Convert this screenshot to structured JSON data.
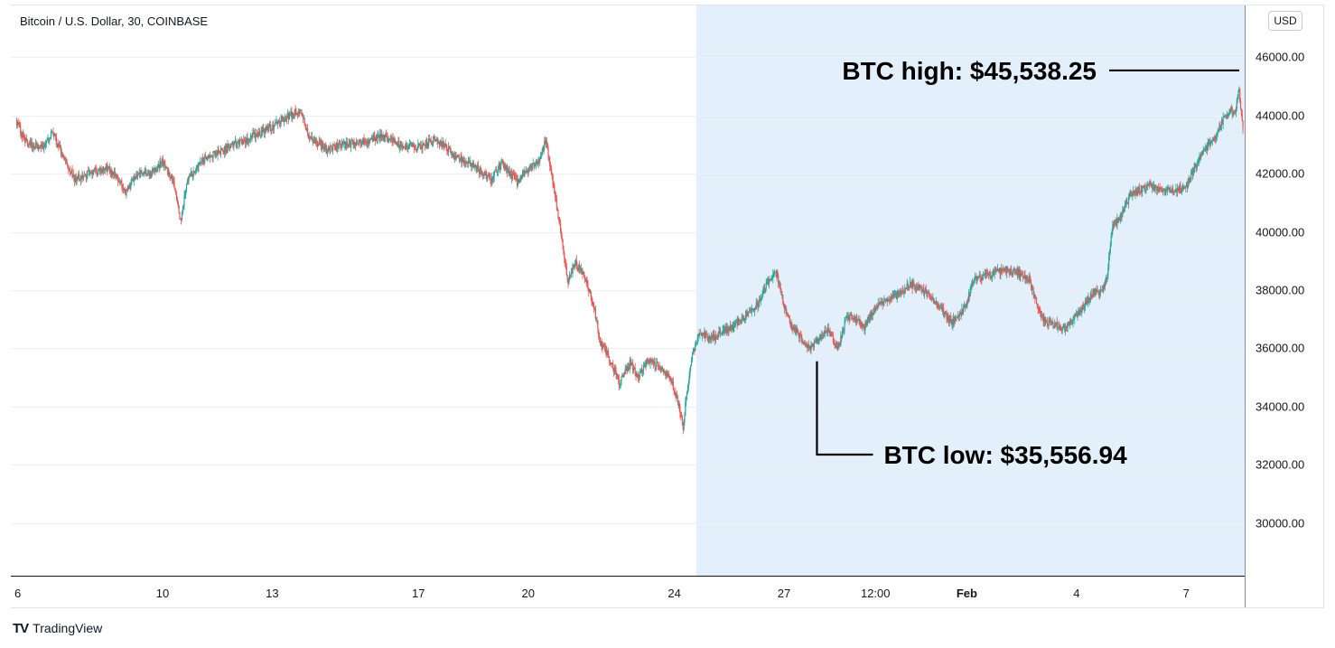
{
  "header": {
    "symbol_title": "Bitcoin / U.S. Dollar, 30, COINBASE",
    "currency": "USD"
  },
  "branding": {
    "logo_glyph": "TV",
    "name": "TradingView"
  },
  "colors": {
    "up": "#26a69a",
    "down": "#ef5350",
    "highlight": "#e3effb",
    "grid": "#eef0f3",
    "axis": "#8a8f99"
  },
  "chart_data": {
    "type": "candlestick",
    "title": "Bitcoin / U.S. Dollar, 30, COINBASE",
    "currency": "USD",
    "ylim": [
      28200,
      47800
    ],
    "y_ticks": [
      "46000.00",
      "44000.00",
      "42000.00",
      "40000.00",
      "38000.00",
      "36000.00",
      "34000.00",
      "32000.00",
      "30000.00"
    ],
    "y_tick_values": [
      46000,
      44000,
      42000,
      40000,
      38000,
      36000,
      34000,
      32000,
      30000
    ],
    "x_ticks": [
      {
        "label": "6",
        "day": 0,
        "bold": false
      },
      {
        "label": "10",
        "day": 4,
        "bold": false
      },
      {
        "label": "13",
        "day": 7,
        "bold": false
      },
      {
        "label": "17",
        "day": 11,
        "bold": false
      },
      {
        "label": "20",
        "day": 14,
        "bold": false
      },
      {
        "label": "24",
        "day": 18,
        "bold": false
      },
      {
        "label": "27",
        "day": 21,
        "bold": false
      },
      {
        "label": "12:00",
        "day": 23.5,
        "bold": false
      },
      {
        "label": "Feb",
        "day": 26,
        "bold": true
      },
      {
        "label": "4",
        "day": 29,
        "bold": false
      },
      {
        "label": "7",
        "day": 32,
        "bold": false
      }
    ],
    "highlight_day_range": [
      18.6,
      33.6
    ],
    "day_range": [
      -0.15,
      33.6
    ],
    "price_path": [
      [
        0.0,
        43800
      ],
      [
        0.3,
        43000
      ],
      [
        0.7,
        42900
      ],
      [
        1.0,
        43400
      ],
      [
        1.3,
        42600
      ],
      [
        1.6,
        41800
      ],
      [
        2.0,
        42000
      ],
      [
        2.5,
        42200
      ],
      [
        2.8,
        41800
      ],
      [
        3.0,
        41300
      ],
      [
        3.3,
        42000
      ],
      [
        3.7,
        42000
      ],
      [
        4.0,
        42400
      ],
      [
        4.3,
        41800
      ],
      [
        4.5,
        40400
      ],
      [
        4.7,
        41800
      ],
      [
        5.0,
        42400
      ],
      [
        5.5,
        42700
      ],
      [
        6.0,
        43000
      ],
      [
        6.5,
        43300
      ],
      [
        7.0,
        43600
      ],
      [
        7.5,
        44000
      ],
      [
        7.8,
        44200
      ],
      [
        8.0,
        43300
      ],
      [
        8.5,
        42800
      ],
      [
        9.0,
        43000
      ],
      [
        9.5,
        43100
      ],
      [
        10.0,
        43300
      ],
      [
        10.5,
        43000
      ],
      [
        11.0,
        42900
      ],
      [
        11.5,
        43200
      ],
      [
        12.0,
        42600
      ],
      [
        12.5,
        42300
      ],
      [
        13.0,
        41800
      ],
      [
        13.3,
        42400
      ],
      [
        13.7,
        41700
      ],
      [
        14.0,
        42100
      ],
      [
        14.3,
        42400
      ],
      [
        14.5,
        43200
      ],
      [
        14.7,
        41600
      ],
      [
        14.9,
        40000
      ],
      [
        15.1,
        38300
      ],
      [
        15.3,
        39000
      ],
      [
        15.6,
        38300
      ],
      [
        15.8,
        37500
      ],
      [
        16.0,
        36100
      ],
      [
        16.2,
        35800
      ],
      [
        16.5,
        34800
      ],
      [
        16.8,
        35500
      ],
      [
        17.0,
        35000
      ],
      [
        17.3,
        35600
      ],
      [
        17.6,
        35400
      ],
      [
        17.9,
        35000
      ],
      [
        18.1,
        34200
      ],
      [
        18.25,
        33300
      ],
      [
        18.35,
        34500
      ],
      [
        18.5,
        35700
      ],
      [
        18.7,
        36600
      ],
      [
        19.0,
        36300
      ],
      [
        19.3,
        36600
      ],
      [
        19.6,
        36700
      ],
      [
        20.0,
        37200
      ],
      [
        20.3,
        37500
      ],
      [
        20.6,
        38400
      ],
      [
        20.8,
        38600
      ],
      [
        21.0,
        37500
      ],
      [
        21.2,
        36800
      ],
      [
        21.4,
        36500
      ],
      [
        21.7,
        36000
      ],
      [
        21.9,
        36300
      ],
      [
        22.2,
        36600
      ],
      [
        22.5,
        36000
      ],
      [
        22.7,
        37000
      ],
      [
        22.9,
        37100
      ],
      [
        23.2,
        36700
      ],
      [
        23.5,
        37400
      ],
      [
        23.8,
        37700
      ],
      [
        24.1,
        37800
      ],
      [
        24.4,
        38200
      ],
      [
        24.7,
        38100
      ],
      [
        25.0,
        37800
      ],
      [
        25.2,
        37500
      ],
      [
        25.4,
        37200
      ],
      [
        25.6,
        36900
      ],
      [
        25.8,
        37100
      ],
      [
        26.0,
        37500
      ],
      [
        26.2,
        38400
      ],
      [
        26.6,
        38500
      ],
      [
        27.0,
        38700
      ],
      [
        27.4,
        38600
      ],
      [
        27.7,
        38400
      ],
      [
        27.9,
        37600
      ],
      [
        28.1,
        37000
      ],
      [
        28.4,
        36800
      ],
      [
        28.7,
        36700
      ],
      [
        29.0,
        37100
      ],
      [
        29.3,
        37600
      ],
      [
        29.5,
        38000
      ],
      [
        29.7,
        37900
      ],
      [
        29.85,
        38500
      ],
      [
        30.0,
        40200
      ],
      [
        30.2,
        40500
      ],
      [
        30.5,
        41300
      ],
      [
        31.0,
        41600
      ],
      [
        31.5,
        41400
      ],
      [
        32.0,
        41500
      ],
      [
        32.2,
        42100
      ],
      [
        32.5,
        42800
      ],
      [
        32.8,
        43200
      ],
      [
        33.0,
        43800
      ],
      [
        33.2,
        44200
      ],
      [
        33.35,
        44000
      ],
      [
        33.45,
        45000
      ],
      [
        33.5,
        44300
      ],
      [
        33.55,
        43600
      ]
    ],
    "annotations": [
      {
        "text": "BTC high: $45,538.25",
        "day": 33.45,
        "price": 45538.25
      },
      {
        "text": "BTC low: $35,556.94",
        "day": 21.9,
        "price": 35556.94
      }
    ]
  }
}
